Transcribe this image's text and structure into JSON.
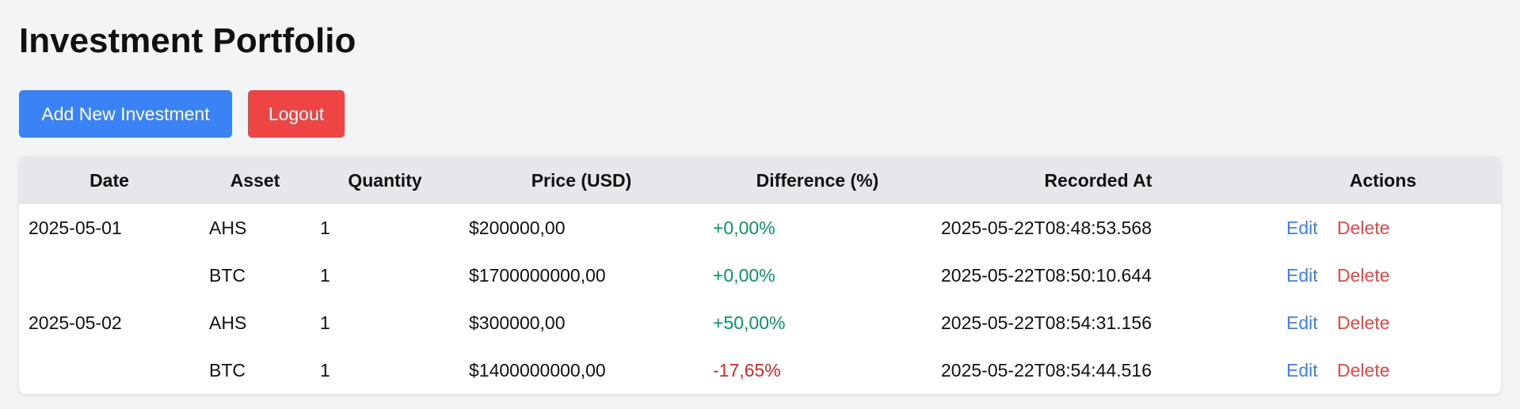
{
  "header": {
    "title": "Investment Portfolio"
  },
  "toolbar": {
    "add_label": "Add New Investment",
    "logout_label": "Logout"
  },
  "colors": {
    "primary": "#3b82f6",
    "danger": "#ef4444",
    "positive": "#059669",
    "negative": "#dc2626",
    "header_bg": "#e5e7eb",
    "page_bg": "#f3f4f6"
  },
  "table": {
    "columns": [
      "Date",
      "Asset",
      "Quantity",
      "Price (USD)",
      "Difference (%)",
      "Recorded At",
      "Actions"
    ],
    "rows": [
      {
        "date": "2025-05-01",
        "asset": "AHS",
        "quantity": "1",
        "price": "$200000,00",
        "difference": "+0,00%",
        "trend": "positive",
        "recorded_at": "2025-05-22T08:48:53.568",
        "edit": "Edit",
        "delete": "Delete"
      },
      {
        "date": "",
        "asset": "BTC",
        "quantity": "1",
        "price": "$1700000000,00",
        "difference": "+0,00%",
        "trend": "positive",
        "recorded_at": "2025-05-22T08:50:10.644",
        "edit": "Edit",
        "delete": "Delete"
      },
      {
        "date": "2025-05-02",
        "asset": "AHS",
        "quantity": "1",
        "price": "$300000,00",
        "difference": "+50,00%",
        "trend": "positive",
        "recorded_at": "2025-05-22T08:54:31.156",
        "edit": "Edit",
        "delete": "Delete"
      },
      {
        "date": "",
        "asset": "BTC",
        "quantity": "1",
        "price": "$1400000000,00",
        "difference": "-17,65%",
        "trend": "negative",
        "recorded_at": "2025-05-22T08:54:44.516",
        "edit": "Edit",
        "delete": "Delete"
      }
    ]
  }
}
